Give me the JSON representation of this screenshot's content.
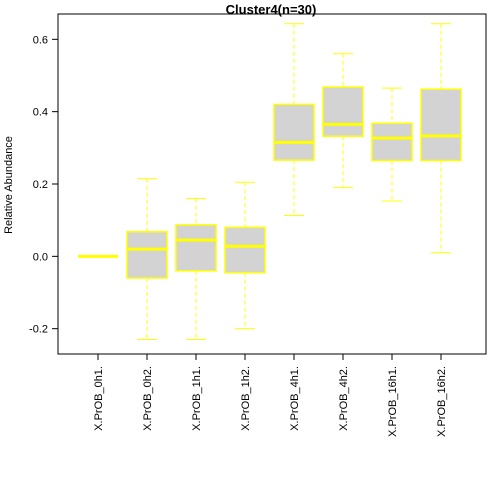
{
  "chart_data": {
    "type": "boxplot",
    "title": "Cluster4(n=30)",
    "xlabel": "",
    "ylabel": "Relative Abundance",
    "ylim": [
      -0.27,
      0.67
    ],
    "yticks": [
      -0.2,
      0.0,
      0.2,
      0.4,
      0.6
    ],
    "ytick_labels": [
      "-0.2",
      "0.0",
      "0.2",
      "0.4",
      "0.6"
    ],
    "grid": false,
    "colors": {
      "box_fill": "#d3d3d3",
      "box_border": "#ffff00",
      "median": "#ffff00",
      "whisker": "#ffff00"
    },
    "categories": [
      "X.PrOB_0h1.",
      "X.PrOB_0h2.",
      "X.PrOB_1h1.",
      "X.PrOB_1h2.",
      "X.PrOB_4h1.",
      "X.PrOB_4h2.",
      "X.PrOB_16h1.",
      "X.PrOB_16h2."
    ],
    "boxes": [
      {
        "min": 0.0,
        "q1": 0.0,
        "median": 0.0,
        "q3": 0.0,
        "max": 0.0
      },
      {
        "min": -0.23,
        "q1": -0.06,
        "median": 0.02,
        "q3": 0.068,
        "max": 0.215
      },
      {
        "min": -0.23,
        "q1": -0.04,
        "median": 0.045,
        "q3": 0.087,
        "max": 0.16
      },
      {
        "min": -0.2,
        "q1": -0.045,
        "median": 0.028,
        "q3": 0.08,
        "max": 0.205
      },
      {
        "min": 0.113,
        "q1": 0.266,
        "median": 0.315,
        "q3": 0.42,
        "max": 0.643
      },
      {
        "min": 0.19,
        "q1": 0.332,
        "median": 0.365,
        "q3": 0.468,
        "max": 0.56
      },
      {
        "min": 0.153,
        "q1": 0.265,
        "median": 0.327,
        "q3": 0.368,
        "max": 0.465
      },
      {
        "min": 0.01,
        "q1": 0.265,
        "median": 0.333,
        "q3": 0.462,
        "max": 0.643
      }
    ]
  }
}
